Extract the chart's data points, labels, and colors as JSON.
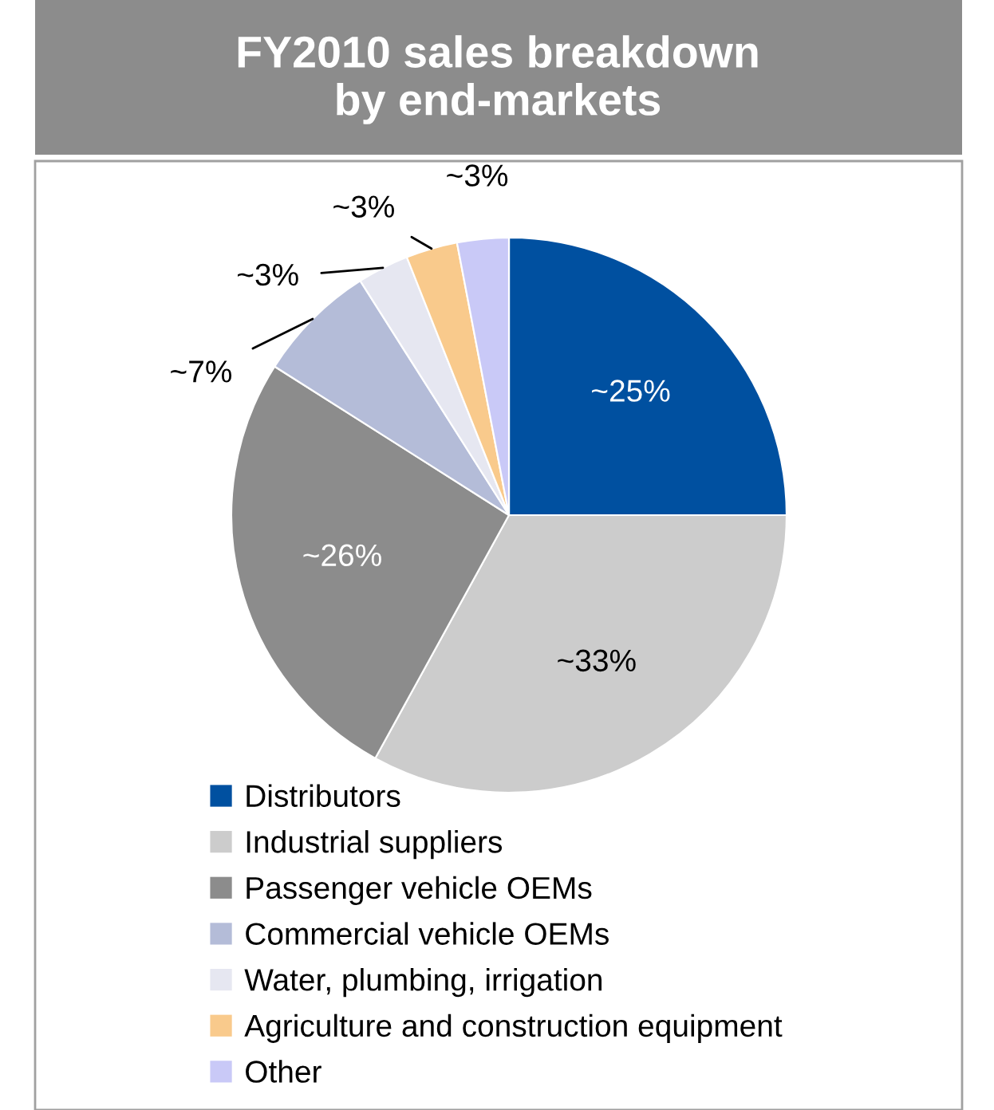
{
  "chart_data": {
    "type": "pie",
    "title": "FY2010 sales breakdown\nby end-markets",
    "categories": [
      "Distributors",
      "Industrial suppliers",
      "Passenger vehicle OEMs",
      "Commercial vehicle OEMs",
      "Water, plumbing, irrigation",
      "Agriculture and construction equipment",
      "Other"
    ],
    "values": [
      25,
      33,
      26,
      7,
      3,
      3,
      3
    ],
    "value_labels": [
      "~25%",
      "~33%",
      "~26%",
      "~7%",
      "~3%",
      "~3%",
      "~3%"
    ],
    "colors": [
      "#0050a0",
      "#cccccc",
      "#8c8c8c",
      "#b4bcd8",
      "#e6e7f1",
      "#f9ca8c",
      "#c9c9f7"
    ],
    "legend": "bottom"
  }
}
